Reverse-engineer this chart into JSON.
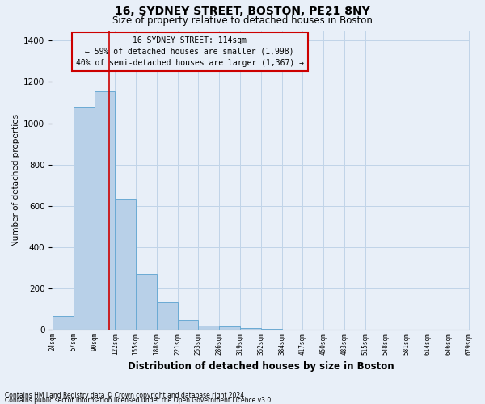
{
  "title": "16, SYDNEY STREET, BOSTON, PE21 8NY",
  "subtitle": "Size of property relative to detached houses in Boston",
  "xlabel": "Distribution of detached houses by size in Boston",
  "ylabel": "Number of detached properties",
  "footnote1": "Contains HM Land Registry data © Crown copyright and database right 2024.",
  "footnote2": "Contains public sector information licensed under the Open Government Licence v3.0.",
  "annotation_line1": "16 SYDNEY STREET: 114sqm",
  "annotation_line2": "← 59% of detached houses are smaller (1,998)",
  "annotation_line3": "40% of semi-detached houses are larger (1,367) →",
  "bar_heights": [
    68,
    1075,
    1155,
    635,
    270,
    135,
    48,
    20,
    15,
    10,
    5,
    2,
    2,
    0,
    0,
    0,
    0,
    0,
    0,
    0
  ],
  "tick_labels": [
    "24sqm",
    "57sqm",
    "90sqm",
    "122sqm",
    "155sqm",
    "188sqm",
    "221sqm",
    "253sqm",
    "286sqm",
    "319sqm",
    "352sqm",
    "384sqm",
    "417sqm",
    "450sqm",
    "483sqm",
    "515sqm",
    "548sqm",
    "581sqm",
    "614sqm",
    "646sqm",
    "679sqm"
  ],
  "bar_color": "#b8d0e8",
  "bar_edge_color": "#6aaad4",
  "vline_x_bin": 2.7,
  "vline_color": "#cc0000",
  "ylim": [
    0,
    1450
  ],
  "yticks": [
    0,
    200,
    400,
    600,
    800,
    1000,
    1200,
    1400
  ],
  "grid_color": "#c0d4e8",
  "bg_color": "#e8eff8",
  "title_fontsize": 10,
  "subtitle_fontsize": 8.5
}
